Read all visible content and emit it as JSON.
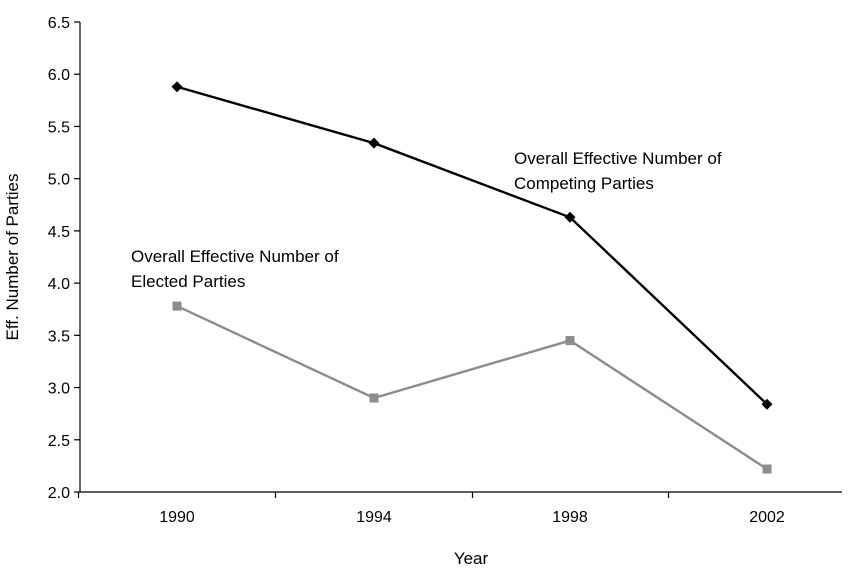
{
  "chart_data": {
    "type": "line",
    "title": "",
    "xlabel": "Year",
    "ylabel": "Eff. Number of Parties",
    "categories": [
      "1990",
      "1994",
      "1998",
      "2002"
    ],
    "ylim": [
      2.0,
      6.5
    ],
    "yticks": [
      "2.0",
      "2.5",
      "3.0",
      "3.5",
      "4.0",
      "4.5",
      "5.0",
      "5.5",
      "6.0",
      "6.5"
    ],
    "grid": false,
    "legend": "none",
    "series": [
      {
        "values": [
          5.88,
          5.34,
          4.63,
          2.84
        ],
        "marker": "diamond",
        "color": "#000000"
      },
      {
        "values": [
          3.78,
          2.9,
          3.45,
          2.22
        ],
        "marker": "square",
        "color": "#8c8c8c"
      }
    ],
    "annotations": [
      {
        "lines": [
          "Overall Effective Number of",
          "Competing Parties"
        ],
        "series_index": 0
      },
      {
        "lines": [
          "Overall Effective Number of",
          "Elected Parties"
        ],
        "series_index": 1
      }
    ]
  }
}
